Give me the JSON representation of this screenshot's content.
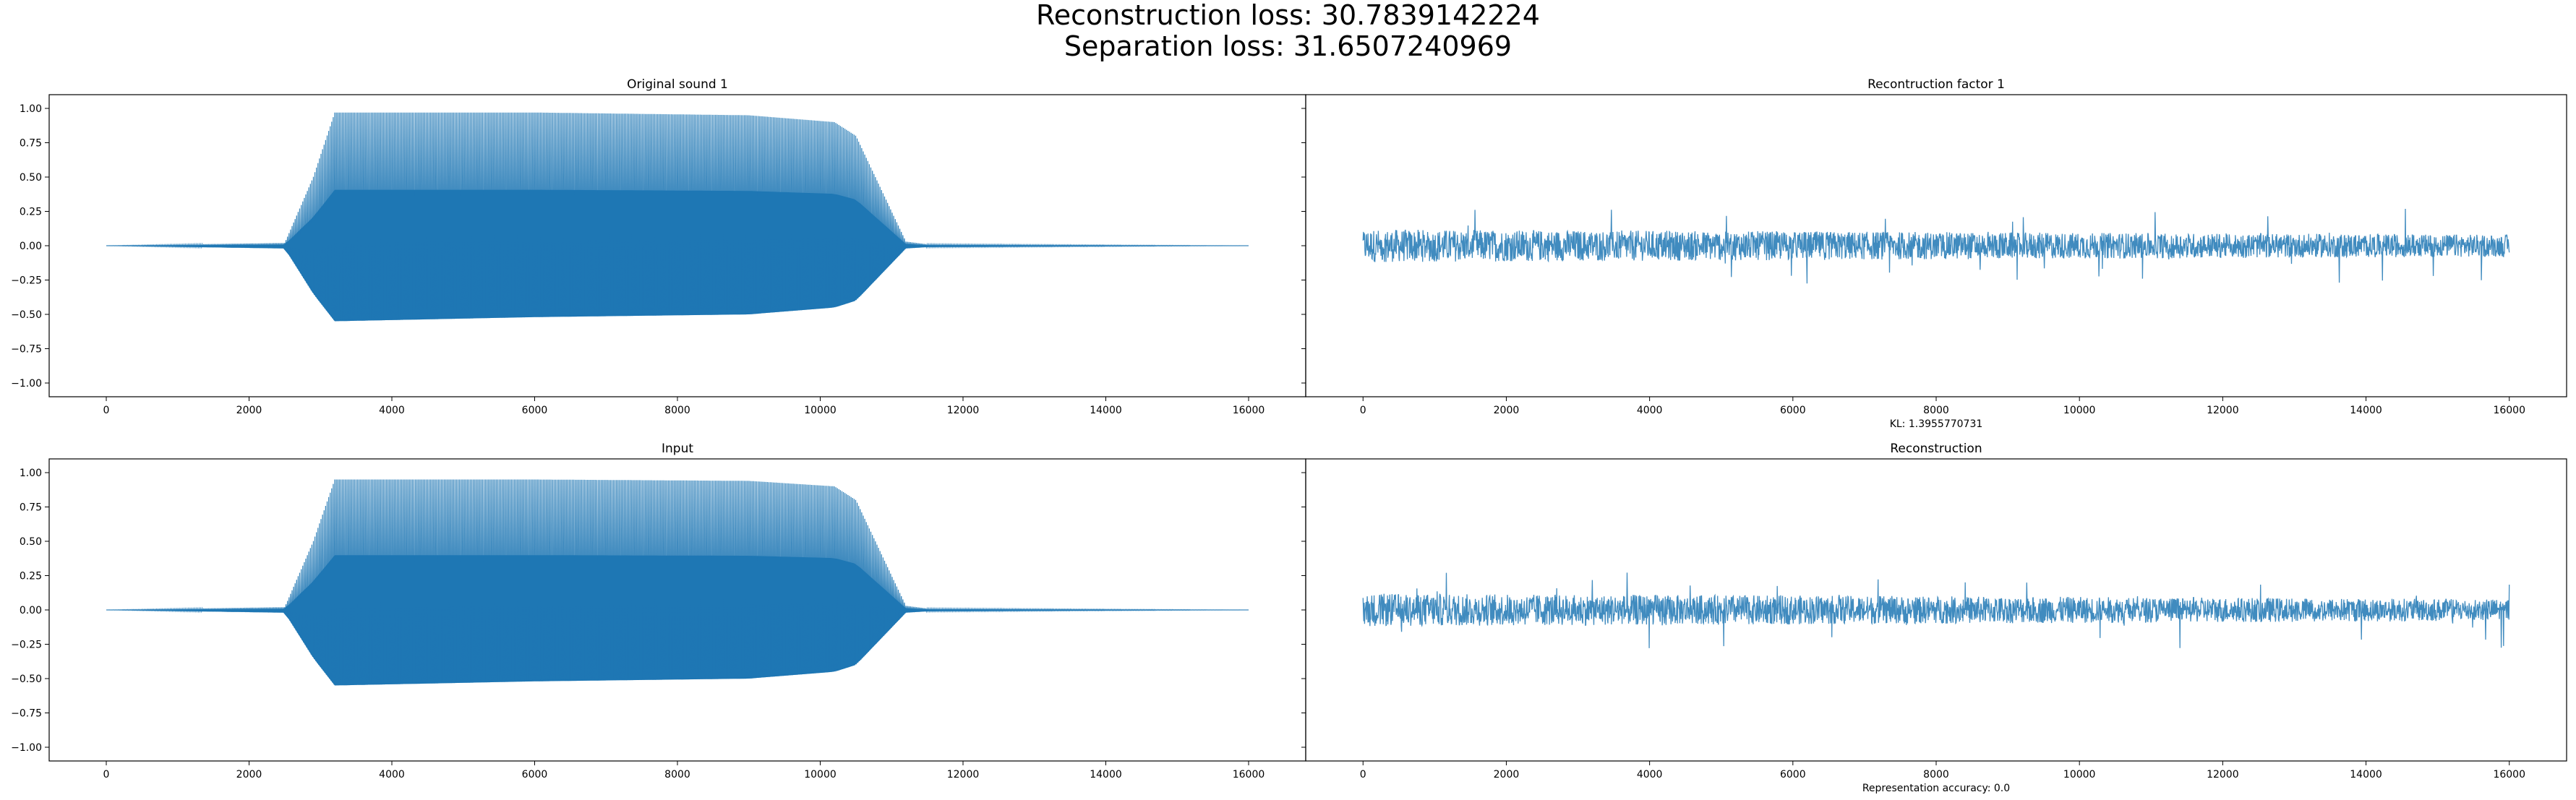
{
  "suptitle": {
    "line1": "Reconstruction loss: 30.7839142224",
    "line2": "Separation loss: 31.6507240969"
  },
  "colors": {
    "series": "#1f77b4",
    "axes": "#000000",
    "background": "#ffffff"
  },
  "chart_data": [
    {
      "type": "line",
      "title": "Original sound 1",
      "xlabel": "",
      "ylabel": "",
      "xlim": [
        -800,
        16800
      ],
      "ylim": [
        -1.1,
        1.1
      ],
      "x_ticks": [
        0,
        2000,
        4000,
        6000,
        8000,
        10000,
        12000,
        14000,
        16000
      ],
      "y_ticks": [
        -1.0,
        -0.75,
        -0.5,
        -0.25,
        0.0,
        0.25,
        0.5,
        0.75,
        1.0
      ],
      "y_tick_labels": [
        "−1.00",
        "−0.75",
        "−0.50",
        "−0.25",
        "0.00",
        "0.25",
        "0.50",
        "0.75",
        "1.00"
      ],
      "grid": false,
      "series": [
        {
          "kind": "tone",
          "x": [
            0,
            2500,
            2900,
            3200,
            6000,
            9000,
            10200,
            10500,
            11200,
            11500,
            16000
          ],
          "upper": [
            0.0,
            0.02,
            0.5,
            0.97,
            0.97,
            0.95,
            0.9,
            0.8,
            0.03,
            0.01,
            0.0
          ],
          "lower": [
            0.0,
            -0.02,
            -0.35,
            -0.55,
            -0.52,
            -0.5,
            -0.45,
            -0.4,
            -0.02,
            -0.01,
            0.0
          ]
        }
      ]
    },
    {
      "type": "line",
      "title": "Recontruction factor 1",
      "xlabel": "KL: 1.3955770731",
      "ylabel": "",
      "xlim": [
        -800,
        16800
      ],
      "ylim": [
        -1.1,
        1.1
      ],
      "x_ticks": [
        0,
        2000,
        4000,
        6000,
        8000,
        10000,
        12000,
        14000,
        16000
      ],
      "grid": false,
      "series": [
        {
          "kind": "noise",
          "x": [
            0,
            16000
          ],
          "amplitude": [
            0.12,
            0.08
          ],
          "peak": 0.28
        }
      ]
    },
    {
      "type": "line",
      "title": "Input",
      "xlabel": "",
      "ylabel": "",
      "xlim": [
        -800,
        16800
      ],
      "ylim": [
        -1.1,
        1.1
      ],
      "x_ticks": [
        0,
        2000,
        4000,
        6000,
        8000,
        10000,
        12000,
        14000,
        16000
      ],
      "y_ticks": [
        -1.0,
        -0.75,
        -0.5,
        -0.25,
        0.0,
        0.25,
        0.5,
        0.75,
        1.0
      ],
      "y_tick_labels": [
        "−1.00",
        "−0.75",
        "−0.50",
        "−0.25",
        "0.00",
        "0.25",
        "0.50",
        "0.75",
        "1.00"
      ],
      "grid": false,
      "series": [
        {
          "kind": "tone",
          "x": [
            0,
            2500,
            2900,
            3200,
            6000,
            9000,
            10200,
            10500,
            11200,
            11500,
            16000
          ],
          "upper": [
            0.0,
            0.02,
            0.5,
            0.95,
            0.95,
            0.94,
            0.9,
            0.8,
            0.03,
            0.01,
            0.0
          ],
          "lower": [
            0.0,
            -0.02,
            -0.35,
            -0.55,
            -0.52,
            -0.5,
            -0.45,
            -0.4,
            -0.02,
            -0.01,
            0.0
          ]
        }
      ]
    },
    {
      "type": "line",
      "title": "Reconstruction",
      "xlabel": "Representation accuracy: 0.0",
      "ylabel": "",
      "xlim": [
        -800,
        16800
      ],
      "ylim": [
        -1.1,
        1.1
      ],
      "x_ticks": [
        0,
        2000,
        4000,
        6000,
        8000,
        10000,
        12000,
        14000,
        16000
      ],
      "grid": false,
      "series": [
        {
          "kind": "noise",
          "x": [
            0,
            16000
          ],
          "amplitude": [
            0.12,
            0.08
          ],
          "peak": 0.28
        }
      ]
    }
  ]
}
